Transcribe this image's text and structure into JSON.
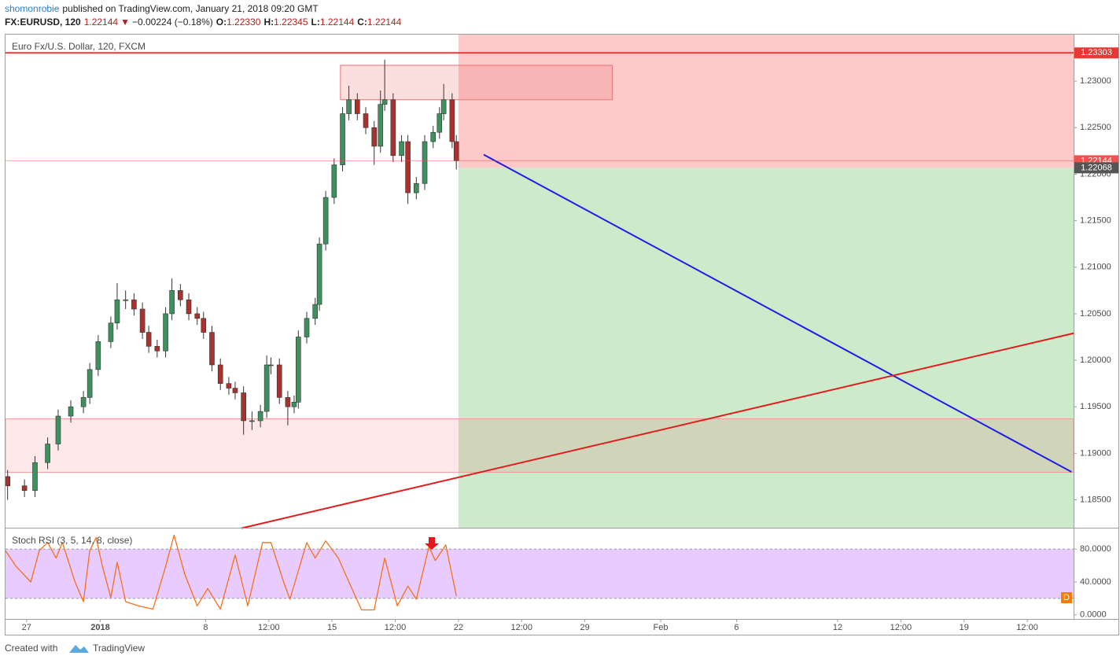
{
  "header": {
    "author": "shomonrobie",
    "published": "published on TradingView.com, January 21, 2018 09:20 GMT",
    "symbol": "FX:EURUSD, 120",
    "last": "1.22144",
    "arrow": "▼",
    "change": "−0.00224 (−0.18%)",
    "o_label": "O:",
    "open": "1.22330",
    "h_label": "H:",
    "high": "1.22345",
    "l_label": "L:",
    "low": "1.22144",
    "c_label": "C:",
    "close": "1.22144"
  },
  "footer": {
    "created": "Created with",
    "brand": "TradingView"
  },
  "chart_data": [
    {
      "type": "candlestick",
      "legend": "Euro Fx/U.S. Dollar, 120, FXCM",
      "up_color": "#3f8f5f",
      "down_color": "#a8322e",
      "xlim": [
        0,
        507
      ],
      "ylim": [
        1.182,
        1.235
      ],
      "xticks": [
        {
          "value": 10,
          "label": "27"
        },
        {
          "value": 45,
          "label": "2018"
        },
        {
          "value": 95,
          "label": "8"
        },
        {
          "value": 125,
          "label": "12:00"
        },
        {
          "value": 155,
          "label": "15"
        },
        {
          "value": 185,
          "label": "12:00"
        },
        {
          "value": 215,
          "label": "22"
        },
        {
          "value": 245,
          "label": "12:00"
        },
        {
          "value": 275,
          "label": "29"
        },
        {
          "value": 311,
          "label": "Feb"
        },
        {
          "value": 347,
          "label": "6"
        },
        {
          "value": 395,
          "label": "12"
        },
        {
          "value": 425,
          "label": "12:00"
        },
        {
          "value": 455,
          "label": "19"
        },
        {
          "value": 485,
          "label": "12:00"
        }
      ],
      "yticks": [
        {
          "value": 1.185,
          "label": "1.18500"
        },
        {
          "value": 1.19,
          "label": "1.19000"
        },
        {
          "value": 1.195,
          "label": "1.19500"
        },
        {
          "value": 1.2,
          "label": "1.20000"
        },
        {
          "value": 1.205,
          "label": "1.20500"
        },
        {
          "value": 1.21,
          "label": "1.21000"
        },
        {
          "value": 1.215,
          "label": "1.21500"
        },
        {
          "value": 1.22,
          "label": "1.22000"
        },
        {
          "value": 1.225,
          "label": "1.22500"
        },
        {
          "value": 1.23,
          "label": "1.23000"
        }
      ],
      "x": [
        1,
        9,
        14,
        20,
        25,
        31,
        37,
        40,
        44,
        50,
        53,
        57,
        61,
        65,
        68,
        72,
        76,
        79,
        83,
        87,
        91,
        94,
        98,
        102,
        106,
        109,
        113,
        117,
        121,
        124,
        126,
        130,
        134,
        137,
        139,
        143,
        147,
        149,
        152,
        156,
        160,
        163,
        167,
        171,
        175,
        178,
        180,
        184,
        188,
        191,
        195,
        199,
        203,
        206,
        208,
        212,
        214
      ],
      "open": [
        1.1875,
        1.1865,
        1.186,
        1.189,
        1.191,
        1.194,
        1.195,
        1.196,
        1.199,
        1.202,
        1.204,
        1.2065,
        1.2065,
        1.2055,
        1.203,
        1.2015,
        1.201,
        1.205,
        1.2075,
        1.2065,
        1.205,
        1.2045,
        1.203,
        1.1995,
        1.1975,
        1.197,
        1.1965,
        1.1935,
        1.1935,
        1.1945,
        1.1995,
        1.1995,
        1.196,
        1.195,
        1.1955,
        1.2025,
        1.2045,
        1.206,
        1.2125,
        1.2175,
        1.221,
        1.2265,
        1.228,
        1.2265,
        1.225,
        1.223,
        1.2275,
        1.228,
        1.222,
        1.2235,
        1.218,
        1.219,
        1.2235,
        1.2245,
        1.2265,
        1.228,
        1.2235
      ],
      "high": [
        1.1882,
        1.1872,
        1.1897,
        1.1917,
        1.1947,
        1.1957,
        1.1967,
        1.1997,
        1.2027,
        1.2047,
        1.2083,
        1.2075,
        1.2072,
        1.2062,
        1.2037,
        1.2022,
        1.2057,
        1.2088,
        1.2082,
        1.2072,
        1.2057,
        1.2052,
        1.2037,
        1.2002,
        1.1982,
        1.1977,
        1.1972,
        1.1945,
        1.1952,
        1.2005,
        1.2003,
        1.2002,
        1.1967,
        1.1962,
        1.2032,
        1.2052,
        1.2067,
        1.2132,
        1.2182,
        1.2217,
        1.2272,
        1.2295,
        1.2287,
        1.2272,
        1.2257,
        1.229,
        1.2323,
        1.2287,
        1.2242,
        1.2242,
        1.2197,
        1.2242,
        1.2252,
        1.2272,
        1.2297,
        1.2287,
        1.2242
      ],
      "low": [
        1.185,
        1.1853,
        1.1853,
        1.1883,
        1.1903,
        1.1933,
        1.1943,
        1.1953,
        1.1983,
        1.2013,
        1.2033,
        1.2055,
        1.2048,
        1.2023,
        1.2008,
        1.2003,
        1.2003,
        1.2043,
        1.2058,
        1.2043,
        1.2038,
        1.2023,
        1.1988,
        1.1968,
        1.1963,
        1.1958,
        1.192,
        1.1925,
        1.1928,
        1.1938,
        1.1985,
        1.1953,
        1.193,
        1.1943,
        1.1948,
        1.2018,
        1.2038,
        1.2053,
        1.2118,
        1.2168,
        1.2203,
        1.2258,
        1.2258,
        1.2243,
        1.221,
        1.2223,
        1.2268,
        1.2213,
        1.2213,
        1.2168,
        1.2173,
        1.2183,
        1.2228,
        1.2238,
        1.2258,
        1.2228,
        1.2205
      ],
      "close": [
        1.1865,
        1.186,
        1.189,
        1.191,
        1.194,
        1.195,
        1.196,
        1.199,
        1.202,
        1.204,
        1.2065,
        1.2065,
        1.2055,
        1.203,
        1.2015,
        1.201,
        1.205,
        1.2075,
        1.2065,
        1.205,
        1.2045,
        1.203,
        1.1995,
        1.1975,
        1.197,
        1.1965,
        1.1935,
        1.1935,
        1.1945,
        1.1995,
        1.1995,
        1.196,
        1.195,
        1.1955,
        1.2025,
        1.2045,
        1.206,
        1.2125,
        1.2175,
        1.221,
        1.2265,
        1.228,
        1.2265,
        1.225,
        1.223,
        1.2275,
        1.228,
        1.222,
        1.2235,
        1.218,
        1.219,
        1.2235,
        1.2245,
        1.2265,
        1.228,
        1.2235,
        1.22144
      ],
      "levels": [
        {
          "value": 1.23303,
          "color": "#e53935"
        },
        {
          "value": 1.22144,
          "color": "#ef5350"
        }
      ],
      "position": {
        "entry": 1.22068,
        "x_start": 215,
        "x_end": 507
      },
      "support_zone": [
        1.18795,
        1.1937
      ],
      "resistance_box": {
        "x": [
          159,
          288
        ],
        "y": [
          1.228,
          1.2317
        ]
      },
      "trendlines": [
        {
          "x": [
            227,
            506
          ],
          "y": [
            1.2221,
            1.188
          ],
          "color": "#1e1ee6"
        },
        {
          "x": [
            112,
            507
          ],
          "y": [
            1.18195,
            1.2029
          ],
          "color": "#e31b1b"
        }
      ]
    },
    {
      "type": "line",
      "title": "Stoch RSI (3, 5, 14, 8, close)",
      "badge": "D",
      "xlim": [
        0,
        507
      ],
      "ylim": [
        -5,
        105
      ],
      "band": [
        20,
        80
      ],
      "yticks": [
        {
          "value": 0,
          "label": "0.0000"
        },
        {
          "value": 40,
          "label": "40.0000"
        },
        {
          "value": 80,
          "label": "80.0000"
        }
      ],
      "series": [
        {
          "color": "#f4701e",
          "x": [
            0,
            5,
            12,
            16,
            20,
            24,
            27,
            33,
            37,
            40,
            43,
            46,
            50,
            53,
            57,
            63,
            70,
            76,
            80,
            85,
            91,
            96,
            102,
            109,
            115,
            122,
            126,
            132,
            135,
            143,
            147,
            152,
            158,
            163,
            169,
            175,
            180,
            186,
            191,
            195,
            201,
            204,
            209,
            214
          ],
          "values": [
            78,
            59,
            40,
            78,
            88,
            69,
            88,
            40,
            16,
            78,
            94,
            59,
            21,
            64,
            16,
            11,
            7,
            59,
            97,
            50,
            11,
            32,
            7,
            73,
            11,
            88,
            88,
            40,
            19,
            88,
            69,
            90,
            69,
            40,
            6,
            6,
            69,
            11,
            35,
            19,
            83,
            66,
            85,
            23
          ]
        }
      ]
    }
  ]
}
